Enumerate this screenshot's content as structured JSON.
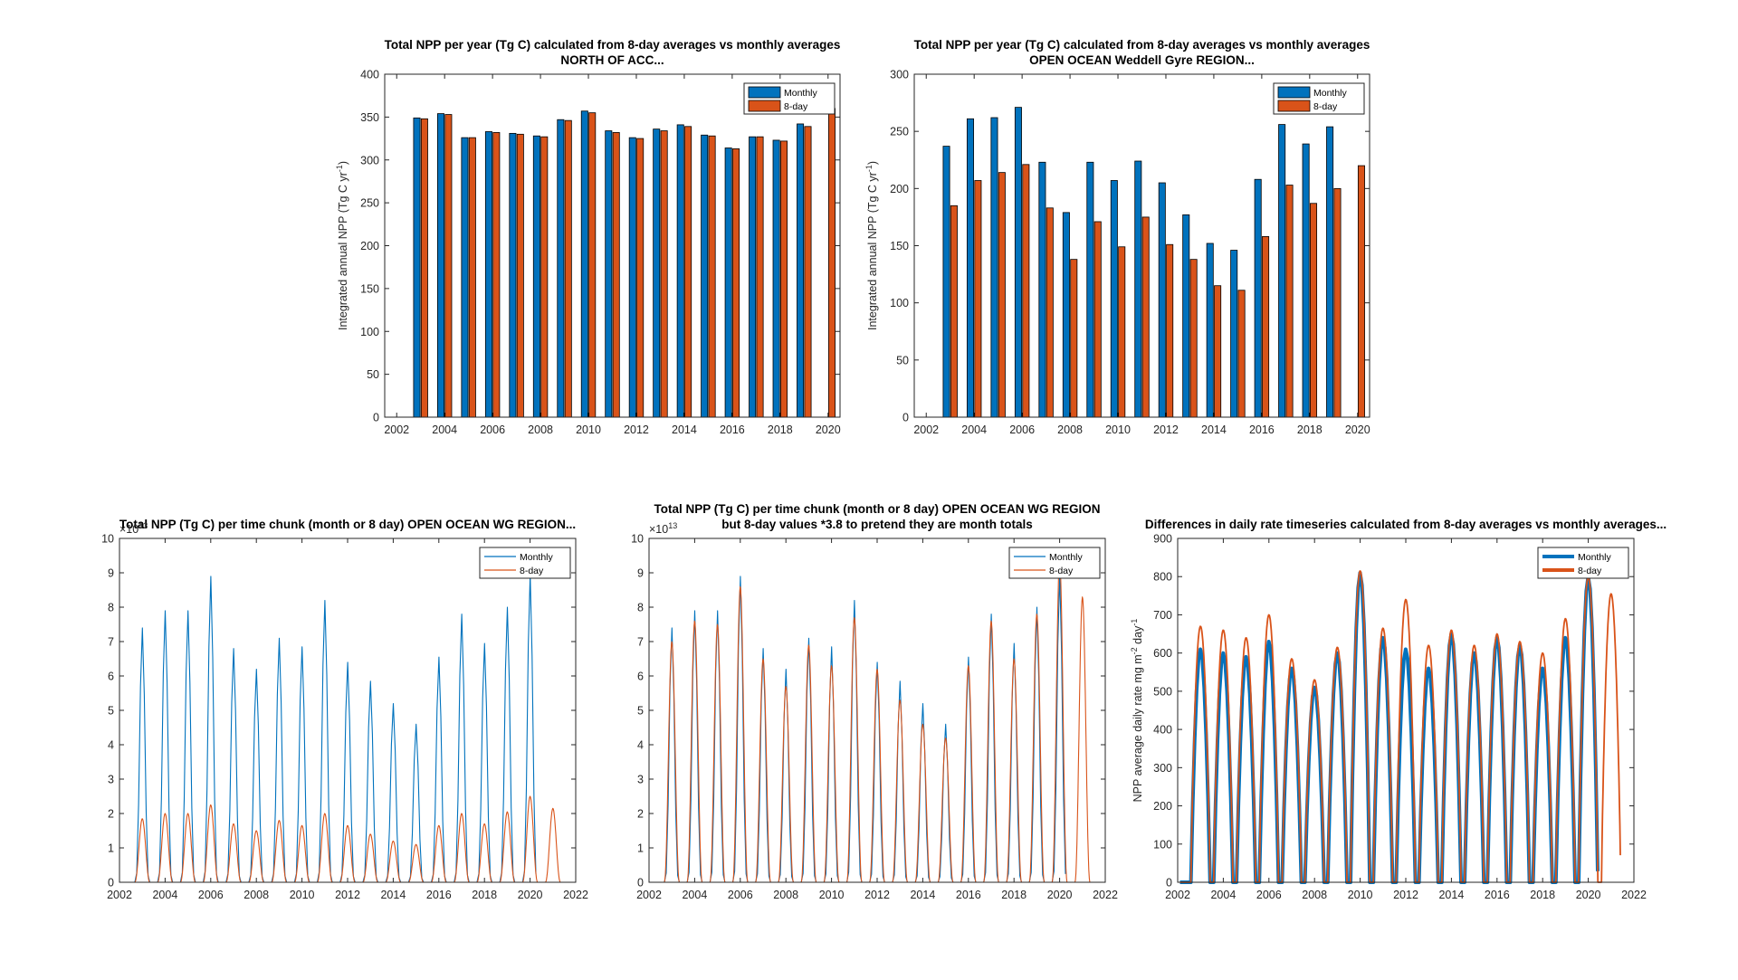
{
  "colors": {
    "monthly": "#0072BD",
    "eightday": "#D95319"
  },
  "chart_data": [
    {
      "type": "bar",
      "title": [
        "Total NPP per year (Tg C) calculated from 8-day averages vs monthly averages",
        "NORTH OF ACC..."
      ],
      "ylabel": "Integrated annual NPP (Tg C yr",
      "ylabel_sup": "-1",
      "ylabel_end": ")",
      "xlim": [
        2001.5,
        2020.5
      ],
      "ylim": [
        0,
        400
      ],
      "xticks": [
        2002,
        2004,
        2006,
        2008,
        2010,
        2012,
        2014,
        2016,
        2018,
        2020
      ],
      "yticks": [
        0,
        50,
        100,
        150,
        200,
        250,
        300,
        350,
        400
      ],
      "legend": [
        "Monthly",
        "8-day"
      ],
      "legend_location": "top-right",
      "x": [
        2003,
        2004,
        2005,
        2006,
        2007,
        2008,
        2009,
        2010,
        2011,
        2012,
        2013,
        2014,
        2015,
        2016,
        2017,
        2018,
        2019,
        2020
      ],
      "series": [
        {
          "name": "Monthly",
          "values": [
            349,
            354,
            326,
            333,
            331,
            328,
            347,
            357,
            334,
            326,
            336,
            341,
            329,
            314,
            327,
            323,
            342,
            null
          ]
        },
        {
          "name": "8-day",
          "values": [
            348,
            353,
            326,
            332,
            330,
            327,
            346,
            355,
            332,
            325,
            334,
            339,
            328,
            313,
            327,
            322,
            339,
            360
          ]
        }
      ]
    },
    {
      "type": "bar",
      "title": [
        "Total NPP per year (Tg C) calculated from 8-day averages vs monthly averages",
        "OPEN OCEAN Weddell Gyre REGION..."
      ],
      "ylabel": "Integrated annual NPP (Tg C yr",
      "ylabel_sup": "-1",
      "ylabel_end": ")",
      "xlim": [
        2001.5,
        2020.5
      ],
      "ylim": [
        0,
        300
      ],
      "xticks": [
        2002,
        2004,
        2006,
        2008,
        2010,
        2012,
        2014,
        2016,
        2018,
        2020
      ],
      "yticks": [
        0,
        50,
        100,
        150,
        200,
        250,
        300
      ],
      "legend": [
        "Monthly",
        "8-day"
      ],
      "legend_location": "top-right",
      "x": [
        2003,
        2004,
        2005,
        2006,
        2007,
        2008,
        2009,
        2010,
        2011,
        2012,
        2013,
        2014,
        2015,
        2016,
        2017,
        2018,
        2019,
        2020
      ],
      "series": [
        {
          "name": "Monthly",
          "values": [
            237,
            261,
            262,
            271,
            223,
            179,
            223,
            207,
            224,
            205,
            177,
            152,
            146,
            208,
            256,
            239,
            254,
            null
          ]
        },
        {
          "name": "8-day",
          "values": [
            185,
            207,
            214,
            221,
            183,
            138,
            171,
            149,
            175,
            151,
            138,
            115,
            111,
            158,
            203,
            187,
            200,
            220
          ]
        }
      ]
    },
    {
      "type": "line",
      "title": [
        "Total NPP (Tg C) per time chunk (month or 8 day) OPEN OCEAN WG REGION..."
      ],
      "exponent_label": "×10",
      "exponent_sup": "13",
      "xlim": [
        2002,
        2022
      ],
      "ylim": [
        0,
        10
      ],
      "xticks": [
        2002,
        2004,
        2006,
        2008,
        2010,
        2012,
        2014,
        2016,
        2018,
        2020,
        2022
      ],
      "yticks": [
        0,
        1,
        2,
        3,
        4,
        5,
        6,
        7,
        8,
        9,
        10
      ],
      "legend": [
        "Monthly",
        "8-day"
      ],
      "legend_location": "top-right",
      "series": [
        {
          "name": "Monthly",
          "peak_years": [
            2003,
            2004,
            2005,
            2006,
            2007,
            2008,
            2009,
            2010,
            2011,
            2012,
            2013,
            2014,
            2015,
            2016,
            2017,
            2018,
            2019,
            2020
          ],
          "peaks": [
            7.4,
            7.9,
            7.9,
            8.9,
            6.8,
            6.2,
            7.1,
            6.85,
            8.2,
            6.4,
            5.85,
            5.2,
            4.6,
            6.55,
            7.8,
            6.95,
            8.0,
            8.95
          ]
        },
        {
          "name": "8-day",
          "peak_years": [
            2003,
            2004,
            2005,
            2006,
            2007,
            2008,
            2009,
            2010,
            2011,
            2012,
            2013,
            2014,
            2015,
            2016,
            2017,
            2018,
            2019,
            2020,
            2021
          ],
          "peaks": [
            1.85,
            2.0,
            2.0,
            2.25,
            1.7,
            1.5,
            1.8,
            1.65,
            2.0,
            1.65,
            1.4,
            1.2,
            1.1,
            1.65,
            2.0,
            1.7,
            2.05,
            2.5,
            2.15
          ]
        }
      ]
    },
    {
      "type": "line",
      "title": [
        "Total NPP (Tg C) per time chunk (month or 8 day) OPEN OCEAN WG REGION",
        "but 8-day values *3.8 to pretend they are month totals"
      ],
      "exponent_label": "×10",
      "exponent_sup": "13",
      "xlim": [
        2002,
        2022
      ],
      "ylim": [
        0,
        10
      ],
      "xticks": [
        2002,
        2004,
        2006,
        2008,
        2010,
        2012,
        2014,
        2016,
        2018,
        2020,
        2022
      ],
      "yticks": [
        0,
        1,
        2,
        3,
        4,
        5,
        6,
        7,
        8,
        9,
        10
      ],
      "legend": [
        "Monthly",
        "8-day"
      ],
      "legend_location": "top-right",
      "series": [
        {
          "name": "Monthly",
          "peak_years": [
            2003,
            2004,
            2005,
            2006,
            2007,
            2008,
            2009,
            2010,
            2011,
            2012,
            2013,
            2014,
            2015,
            2016,
            2017,
            2018,
            2019,
            2020
          ],
          "peaks": [
            7.4,
            7.9,
            7.9,
            8.9,
            6.8,
            6.2,
            7.1,
            6.85,
            8.2,
            6.4,
            5.85,
            5.2,
            4.6,
            6.55,
            7.8,
            6.95,
            8.0,
            8.95
          ]
        },
        {
          "name": "8-day",
          "peak_years": [
            2003,
            2004,
            2005,
            2006,
            2007,
            2008,
            2009,
            2010,
            2011,
            2012,
            2013,
            2014,
            2015,
            2016,
            2017,
            2018,
            2019,
            2020,
            2021
          ],
          "peaks": [
            7.0,
            7.6,
            7.5,
            8.6,
            6.5,
            5.7,
            6.9,
            6.3,
            7.7,
            6.2,
            5.3,
            4.6,
            4.2,
            6.3,
            7.6,
            6.5,
            7.8,
            9.4,
            8.3
          ]
        }
      ]
    },
    {
      "type": "line",
      "title": [
        "Differences in daily rate timeseries calculated from 8-day averages vs monthly averages..."
      ],
      "ylabel": "NPP average daily rate mg m",
      "ylabel_sup1": "-2",
      "ylabel_mid": " day",
      "ylabel_sup2": "-1",
      "xlim": [
        2002,
        2022
      ],
      "ylim": [
        0,
        900
      ],
      "xticks": [
        2002,
        2004,
        2006,
        2008,
        2010,
        2012,
        2014,
        2016,
        2018,
        2020,
        2022
      ],
      "yticks": [
        0,
        100,
        200,
        300,
        400,
        500,
        600,
        700,
        800,
        900
      ],
      "legend": [
        "Monthly",
        "8-day"
      ],
      "legend_location": "top-right",
      "series": [
        {
          "name": "Monthly",
          "peak_years": [
            2003,
            2004,
            2005,
            2006,
            2007,
            2008,
            2009,
            2010,
            2011,
            2012,
            2013,
            2014,
            2015,
            2016,
            2017,
            2018,
            2019,
            2020
          ],
          "peaks": [
            610,
            600,
            590,
            630,
            560,
            510,
            600,
            810,
            640,
            610,
            560,
            650,
            600,
            640,
            620,
            560,
            640,
            800
          ]
        },
        {
          "name": "8-day",
          "peak_years": [
            2003,
            2004,
            2005,
            2006,
            2007,
            2008,
            2009,
            2010,
            2011,
            2012,
            2013,
            2014,
            2015,
            2016,
            2017,
            2018,
            2019,
            2020,
            2021
          ],
          "peaks": [
            670,
            660,
            640,
            700,
            585,
            530,
            615,
            815,
            665,
            740,
            620,
            660,
            620,
            650,
            630,
            600,
            690,
            800,
            755
          ]
        }
      ]
    }
  ]
}
